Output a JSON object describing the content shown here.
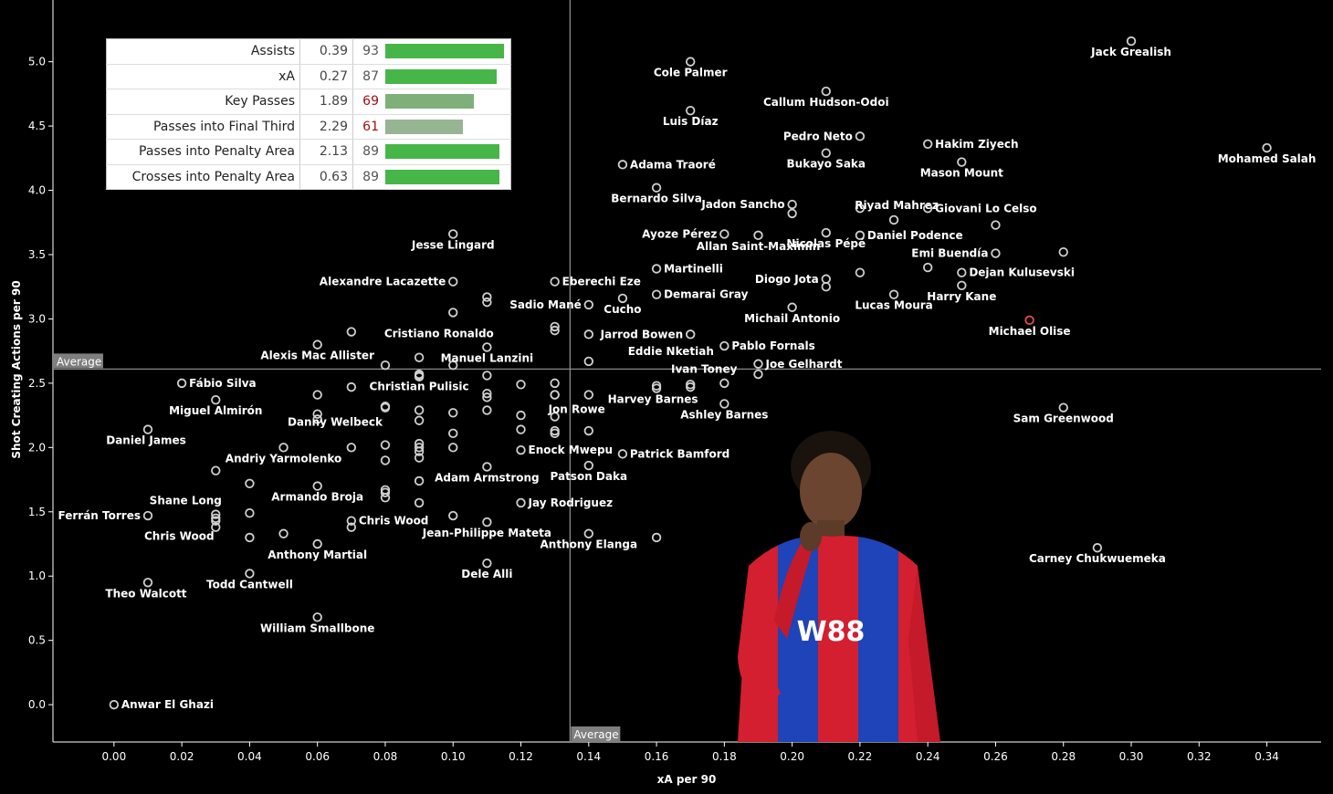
{
  "chart_data": {
    "type": "scatter",
    "xlabel": "xA per 90",
    "ylabel": "Shot Creating Actions per 90",
    "xlim": [
      -0.018,
      0.356
    ],
    "ylim": [
      -0.29,
      5.48
    ],
    "xticks": [
      "0.00",
      "0.02",
      "0.04",
      "0.06",
      "0.08",
      "0.10",
      "0.12",
      "0.14",
      "0.16",
      "0.18",
      "0.20",
      "0.22",
      "0.24",
      "0.26",
      "0.28",
      "0.30",
      "0.32",
      "0.34"
    ],
    "yticks": [
      "0.0",
      "0.5",
      "1.0",
      "1.5",
      "2.0",
      "2.5",
      "3.0",
      "3.5",
      "4.0",
      "4.5",
      "5.0"
    ],
    "average_label": "Average",
    "average_x": 0.1345,
    "average_y": 2.61,
    "highlight_color": "#e24b4b",
    "marker_color": "#cfcfcf",
    "labeled_points": [
      {
        "name": "Jack Grealish",
        "x": 0.3,
        "y": 5.16
      },
      {
        "name": "Cole Palmer",
        "x": 0.17,
        "y": 5.0
      },
      {
        "name": "Callum Hudson-Odoi",
        "x": 0.21,
        "y": 4.77
      },
      {
        "name": "Luis Díaz",
        "x": 0.17,
        "y": 4.62
      },
      {
        "name": "Pedro Neto",
        "x": 0.22,
        "y": 4.42
      },
      {
        "name": "Hakim Ziyech",
        "x": 0.24,
        "y": 4.36
      },
      {
        "name": "Mohamed Salah",
        "x": 0.34,
        "y": 4.33
      },
      {
        "name": "Bukayo Saka",
        "x": 0.21,
        "y": 4.29
      },
      {
        "name": "Adama Traoré",
        "x": 0.15,
        "y": 4.2
      },
      {
        "name": "Mason Mount",
        "x": 0.25,
        "y": 4.22
      },
      {
        "name": "Bernardo Silva",
        "x": 0.16,
        "y": 4.02
      },
      {
        "name": "Riyad Mahrez",
        "x": 0.23,
        "y": 3.77
      },
      {
        "name": "Jadon Sancho",
        "x": 0.2,
        "y": 3.89
      },
      {
        "name": "Giovani Lo Celso",
        "x": 0.24,
        "y": 3.86
      },
      {
        "name": "Jesse Lingard",
        "x": 0.1,
        "y": 3.66
      },
      {
        "name": "Ayoze Pérez",
        "x": 0.18,
        "y": 3.66
      },
      {
        "name": "Daniel Podence",
        "x": 0.22,
        "y": 3.65
      },
      {
        "name": "Allan Saint-Maximin",
        "x": 0.19,
        "y": 3.65
      },
      {
        "name": "Nicolas Pépé",
        "x": 0.21,
        "y": 3.67
      },
      {
        "name": "Emi Buendía",
        "x": 0.26,
        "y": 3.51
      },
      {
        "name": "Martinelli",
        "x": 0.16,
        "y": 3.39
      },
      {
        "name": "Dejan Kulusevski",
        "x": 0.25,
        "y": 3.36
      },
      {
        "name": "Alexandre Lacazette",
        "x": 0.1,
        "y": 3.29
      },
      {
        "name": "Eberechi Eze",
        "x": 0.13,
        "y": 3.29
      },
      {
        "name": "Diogo Jota",
        "x": 0.21,
        "y": 3.31
      },
      {
        "name": "Demarai Gray",
        "x": 0.16,
        "y": 3.19
      },
      {
        "name": "Harry Kane",
        "x": 0.25,
        "y": 3.26
      },
      {
        "name": "Sadio Mané",
        "x": 0.14,
        "y": 3.11
      },
      {
        "name": "Cucho",
        "x": 0.15,
        "y": 3.16
      },
      {
        "name": "Lucas Moura",
        "x": 0.23,
        "y": 3.19
      },
      {
        "name": "Michail Antonio",
        "x": 0.2,
        "y": 3.09
      },
      {
        "name": "Michael Olise",
        "x": 0.27,
        "y": 2.99,
        "highlight": true
      },
      {
        "name": "Cristiano Ronaldo",
        "x": 0.07,
        "y": 2.9
      },
      {
        "name": "Jarrod Bowen",
        "x": 0.17,
        "y": 2.88
      },
      {
        "name": "Alexis Mac Allister",
        "x": 0.06,
        "y": 2.8
      },
      {
        "name": "Pablo Fornals",
        "x": 0.18,
        "y": 2.79
      },
      {
        "name": "Manuel Lanzini",
        "x": 0.11,
        "y": 2.78
      },
      {
        "name": "Joe Gelhardt",
        "x": 0.19,
        "y": 2.65
      },
      {
        "name": "Eddie Nketiah",
        "x": 0.14,
        "y": 2.67
      },
      {
        "name": "Ivan Toney",
        "x": 0.17,
        "y": 2.49
      },
      {
        "name": "Fábio Silva",
        "x": 0.02,
        "y": 2.5
      },
      {
        "name": "Christian Pulisic",
        "x": 0.09,
        "y": 2.56
      },
      {
        "name": "Harvey Barnes",
        "x": 0.16,
        "y": 2.46
      },
      {
        "name": "Jon Rowe",
        "x": 0.13,
        "y": 2.41
      },
      {
        "name": "Miguel Almirón",
        "x": 0.03,
        "y": 2.37
      },
      {
        "name": "Ashley Barnes",
        "x": 0.18,
        "y": 2.34
      },
      {
        "name": "Sam Greenwood",
        "x": 0.28,
        "y": 2.31
      },
      {
        "name": "Danny Welbeck",
        "x": 0.08,
        "y": 2.31
      },
      {
        "name": "Daniel James",
        "x": 0.01,
        "y": 2.14
      },
      {
        "name": "Enock Mwepu",
        "x": 0.12,
        "y": 1.98
      },
      {
        "name": "Patrick Bamford",
        "x": 0.15,
        "y": 1.95
      },
      {
        "name": "Andriy Yarmolenko",
        "x": 0.05,
        "y": 2.0
      },
      {
        "name": "Adam Armstrong",
        "x": 0.11,
        "y": 1.85
      },
      {
        "name": "Patson Daka",
        "x": 0.14,
        "y": 1.86
      },
      {
        "name": "Armando Broja",
        "x": 0.06,
        "y": 1.7
      },
      {
        "name": "Jay Rodriguez",
        "x": 0.12,
        "y": 1.57
      },
      {
        "name": "Shane Long",
        "x": 0.03,
        "y": 1.48
      },
      {
        "name": "Ferrán Torres",
        "x": 0.01,
        "y": 1.47
      },
      {
        "name": "Chris Wood",
        "x": 0.07,
        "y": 1.43
      },
      {
        "name": "Jean-Philippe Mateta",
        "x": 0.11,
        "y": 1.42
      },
      {
        "name": "Chris Wood",
        "x": 0.03,
        "y": 1.38
      },
      {
        "name": "Anthony Elanga",
        "x": 0.14,
        "y": 1.33
      },
      {
        "name": "Carney Chukwuemeka",
        "x": 0.29,
        "y": 1.22
      },
      {
        "name": "Anthony Martial",
        "x": 0.06,
        "y": 1.25
      },
      {
        "name": "Dele Alli",
        "x": 0.11,
        "y": 1.1
      },
      {
        "name": "Todd Cantwell",
        "x": 0.04,
        "y": 1.02
      },
      {
        "name": "Theo Walcott",
        "x": 0.01,
        "y": 0.95
      },
      {
        "name": "William Smallbone",
        "x": 0.06,
        "y": 0.68
      },
      {
        "name": "Anwar El Ghazi",
        "x": 0.0,
        "y": 0.0
      }
    ],
    "unlabeled_points": [
      [
        0.22,
        3.36
      ],
      [
        0.26,
        3.73
      ],
      [
        0.28,
        3.52
      ],
      [
        0.24,
        3.4
      ],
      [
        0.21,
        3.25
      ],
      [
        0.2,
        3.82
      ],
      [
        0.22,
        3.86
      ],
      [
        0.11,
        3.17
      ],
      [
        0.11,
        3.13
      ],
      [
        0.1,
        3.05
      ],
      [
        0.13,
        2.94
      ],
      [
        0.13,
        2.91
      ],
      [
        0.14,
        2.88
      ],
      [
        0.09,
        2.7
      ],
      [
        0.08,
        2.64
      ],
      [
        0.1,
        2.64
      ],
      [
        0.19,
        2.57
      ],
      [
        0.09,
        2.57
      ],
      [
        0.09,
        2.55
      ],
      [
        0.11,
        2.56
      ],
      [
        0.12,
        2.49
      ],
      [
        0.13,
        2.5
      ],
      [
        0.16,
        2.48
      ],
      [
        0.17,
        2.47
      ],
      [
        0.18,
        2.5
      ],
      [
        0.07,
        2.47
      ],
      [
        0.06,
        2.41
      ],
      [
        0.11,
        2.42
      ],
      [
        0.11,
        2.39
      ],
      [
        0.13,
        2.41
      ],
      [
        0.14,
        2.41
      ],
      [
        0.11,
        2.29
      ],
      [
        0.08,
        2.32
      ],
      [
        0.09,
        2.29
      ],
      [
        0.1,
        2.27
      ],
      [
        0.12,
        2.25
      ],
      [
        0.13,
        2.24
      ],
      [
        0.06,
        2.26
      ],
      [
        0.06,
        2.22
      ],
      [
        0.09,
        2.21
      ],
      [
        0.12,
        2.14
      ],
      [
        0.13,
        2.13
      ],
      [
        0.13,
        2.11
      ],
      [
        0.14,
        2.13
      ],
      [
        0.1,
        2.11
      ],
      [
        0.07,
        2.0
      ],
      [
        0.08,
        2.02
      ],
      [
        0.09,
        2.03
      ],
      [
        0.09,
        2.0
      ],
      [
        0.09,
        1.97
      ],
      [
        0.1,
        2.0
      ],
      [
        0.08,
        1.9
      ],
      [
        0.09,
        1.92
      ],
      [
        0.03,
        1.82
      ],
      [
        0.04,
        1.72
      ],
      [
        0.09,
        1.74
      ],
      [
        0.08,
        1.67
      ],
      [
        0.08,
        1.65
      ],
      [
        0.08,
        1.61
      ],
      [
        0.09,
        1.57
      ],
      [
        0.04,
        1.49
      ],
      [
        0.07,
        1.38
      ],
      [
        0.1,
        1.47
      ],
      [
        0.03,
        1.45
      ],
      [
        0.04,
        1.3
      ],
      [
        0.05,
        1.33
      ],
      [
        0.16,
        1.3
      ],
      [
        0.03,
        1.43
      ]
    ]
  },
  "stats_table": {
    "rows": [
      {
        "label": "Assists",
        "value": "0.39",
        "percentile": "93",
        "pct": 93
      },
      {
        "label": "xA",
        "value": "0.27",
        "percentile": "87",
        "pct": 87
      },
      {
        "label": "Key Passes",
        "value": "1.89",
        "percentile": "69",
        "pct": 69
      },
      {
        "label": "Passes into Final Third",
        "value": "2.29",
        "percentile": "61",
        "pct": 61
      },
      {
        "label": "Passes into Penalty Area",
        "value": "2.13",
        "percentile": "89",
        "pct": 89
      },
      {
        "label": "Crosses into Penalty Area",
        "value": "0.63",
        "percentile": "89",
        "pct": 89
      }
    ]
  },
  "photo": {
    "kit_logo_text": "W88"
  }
}
